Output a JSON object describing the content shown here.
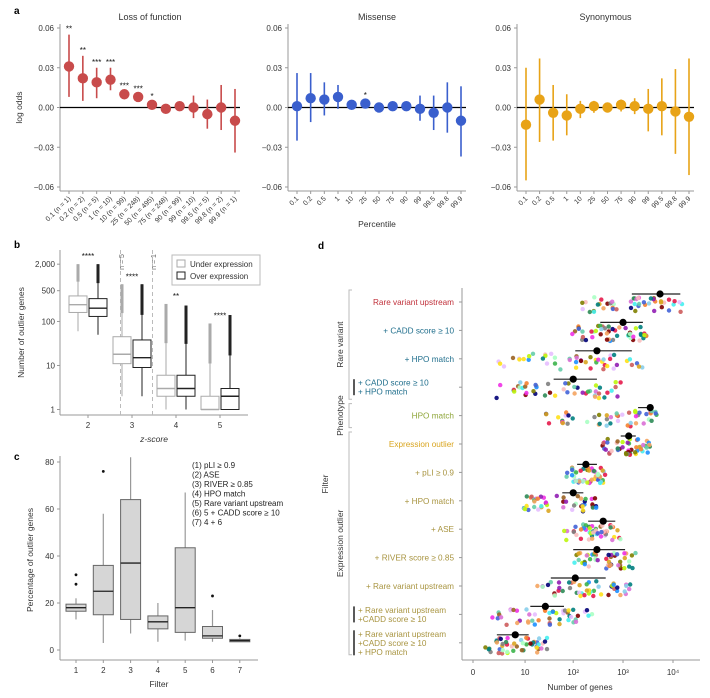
{
  "panel_letters": {
    "a": "a",
    "b": "b",
    "c": "c",
    "d": "d"
  },
  "chart_data": [
    {
      "id": "a-lof",
      "type": "scatter",
      "title": "Loss of function",
      "ylabel": "log odds",
      "xlabel": "",
      "ylim": [
        -0.06,
        0.06
      ],
      "yticks": [
        "0.06",
        "0.03",
        "0.00",
        "−0.03",
        "−0.06"
      ],
      "ytick_values": [
        0.06,
        0.03,
        0,
        -0.03,
        -0.06
      ],
      "color": "#C84B4B",
      "categories": [
        "0.1 (n = 1)",
        "0.2 (n = 2)",
        "0.5 (n = 5)",
        "1 (n = 10)",
        "10 (n = 99)",
        "25 (n = 248)",
        "50 (n = 495)",
        "75 (n = 248)",
        "90 (n = 99)",
        "99 (n = 10)",
        "99.5 (n = 5)",
        "99.8 (n = 2)",
        "99.9 (n = 1)"
      ],
      "values": [
        0.031,
        0.022,
        0.019,
        0.021,
        0.01,
        0.008,
        0.002,
        -0.001,
        0.001,
        0.0,
        -0.005,
        0.0,
        -0.01
      ],
      "lower": [
        0.008,
        0.005,
        0.007,
        0.013,
        0.007,
        0.006,
        0.0,
        -0.002,
        0.0,
        -0.008,
        -0.016,
        -0.017,
        -0.034
      ],
      "upper": [
        0.055,
        0.039,
        0.03,
        0.03,
        0.012,
        0.01,
        0.004,
        0.0,
        0.002,
        0.009,
        0.006,
        0.017,
        0.014
      ],
      "significance": [
        "**",
        "**",
        "***",
        "***",
        "***",
        "***",
        "*",
        "",
        "",
        "",
        "",
        "",
        ""
      ]
    },
    {
      "id": "a-missense",
      "type": "scatter",
      "title": "Missense",
      "xlabel": "Percentile",
      "ylim": [
        -0.06,
        0.06
      ],
      "yticks": [
        "0.06",
        "0.03",
        "0.00",
        "−0.03",
        "−0.06"
      ],
      "ytick_values": [
        0.06,
        0.03,
        0,
        -0.03,
        -0.06
      ],
      "color": "#3A5FCD",
      "categories": [
        "0.1",
        "0.2",
        "0.5",
        "1",
        "10",
        "25",
        "50",
        "75",
        "90",
        "99",
        "99.5",
        "99.8",
        "99.9"
      ],
      "values": [
        0.001,
        0.007,
        0.006,
        0.008,
        0.002,
        0.003,
        0.0,
        0.001,
        0.001,
        -0.001,
        -0.004,
        0.0,
        -0.01
      ],
      "lower": [
        -0.025,
        -0.011,
        -0.006,
        -0.001,
        -0.001,
        0.001,
        -0.001,
        0.0,
        -0.001,
        -0.01,
        -0.017,
        -0.019,
        -0.037
      ],
      "upper": [
        0.026,
        0.026,
        0.019,
        0.017,
        0.005,
        0.005,
        0.001,
        0.003,
        0.004,
        0.009,
        0.009,
        0.019,
        0.016
      ],
      "significance": [
        "",
        "",
        "",
        "",
        "",
        "*",
        "",
        "",
        "",
        "",
        "",
        "",
        ""
      ]
    },
    {
      "id": "a-synonymous",
      "type": "scatter",
      "title": "Synonymous",
      "xlabel": "",
      "ylim": [
        -0.06,
        0.06
      ],
      "yticks": [
        "0.06",
        "0.03",
        "0.00",
        "−0.03",
        "−0.06"
      ],
      "ytick_values": [
        0.06,
        0.03,
        0,
        -0.03,
        -0.06
      ],
      "color": "#E8A317",
      "categories": [
        "0.1",
        "0.2",
        "0.5",
        "1",
        "10",
        "25",
        "50",
        "75",
        "90",
        "99",
        "99.5",
        "99.8",
        "99.9"
      ],
      "values": [
        -0.013,
        0.006,
        -0.004,
        -0.006,
        -0.001,
        0.001,
        0.0,
        0.002,
        0.001,
        -0.001,
        0.001,
        -0.003,
        -0.007
      ],
      "lower": [
        -0.055,
        -0.026,
        -0.025,
        -0.021,
        -0.008,
        -0.004,
        -0.003,
        -0.003,
        -0.005,
        -0.018,
        -0.021,
        -0.035,
        -0.051
      ],
      "upper": [
        0.03,
        0.037,
        0.017,
        0.01,
        0.005,
        0.005,
        0.003,
        0.006,
        0.007,
        0.014,
        0.022,
        0.029,
        0.037
      ],
      "significance": [
        "",
        "",
        "",
        "",
        "",
        "",
        "",
        "",
        "",
        "",
        "",
        "",
        ""
      ]
    },
    {
      "id": "b",
      "type": "box",
      "xlabel": "z-score",
      "ylabel": "Number of outlier genes",
      "yscale": "log",
      "yticks": [
        "2,000",
        "500",
        "100",
        "10",
        "1"
      ],
      "ytick_values": [
        2000,
        500,
        100,
        10,
        1
      ],
      "categories": [
        "2",
        "3",
        "4",
        "5"
      ],
      "legend": [
        "Under expression",
        "Over expression"
      ],
      "legend_position": "top-right",
      "annotations": [
        "n = 5",
        "n = 1"
      ],
      "significance": [
        "****",
        "****",
        "**",
        "****"
      ],
      "series": [
        {
          "name": "Under expression",
          "color": "#aaaaaa",
          "boxes": [
            {
              "min": 60,
              "q1": 160,
              "median": 240,
              "q3": 380,
              "max": 2000
            },
            {
              "min": 2,
              "q1": 11,
              "median": 18,
              "q3": 45,
              "max": 700
            },
            {
              "min": 1,
              "q1": 2,
              "median": 3,
              "q3": 6,
              "max": 250
            },
            {
              "min": 1,
              "q1": 1,
              "median": 1,
              "q3": 2,
              "max": 90
            }
          ]
        },
        {
          "name": "Over expression",
          "color": "#222222",
          "boxes": [
            {
              "min": 50,
              "q1": 130,
              "median": 200,
              "q3": 330,
              "max": 2000
            },
            {
              "min": 2,
              "q1": 9,
              "median": 15,
              "q3": 38,
              "max": 700
            },
            {
              "min": 1,
              "q1": 2,
              "median": 3,
              "q3": 6,
              "max": 230
            },
            {
              "min": 1,
              "q1": 1,
              "median": 2,
              "q3": 3,
              "max": 140
            }
          ]
        }
      ]
    },
    {
      "id": "c",
      "type": "box",
      "xlabel": "Filter",
      "ylabel": "Percentage of outlier genes",
      "ylim": [
        0,
        82
      ],
      "yticks": [
        "80",
        "60",
        "40",
        "20",
        "0"
      ],
      "ytick_values": [
        80,
        60,
        40,
        20,
        0
      ],
      "categories": [
        "1",
        "2",
        "3",
        "4",
        "5",
        "6",
        "7"
      ],
      "legend": [
        "(1) pLI ≥ 0.9",
        "(2) ASE",
        "(3) RIVER ≥ 0.85",
        "(4) HPO match",
        "(5) Rare variant upstream",
        "(6) 5 + CADD score ≥ 10",
        "(7) 4 + 6"
      ],
      "legend_position": "top-right",
      "boxes": [
        {
          "min": 13,
          "q1": 16.5,
          "median": 18,
          "q3": 19.5,
          "max": 22,
          "outliers": [
            28,
            32
          ]
        },
        {
          "min": 3,
          "q1": 15,
          "median": 25,
          "q3": 36,
          "max": 58,
          "outliers": [
            76
          ]
        },
        {
          "min": 7,
          "q1": 13,
          "median": 37,
          "q3": 64,
          "max": 82,
          "outliers": []
        },
        {
          "min": 3.5,
          "q1": 9,
          "median": 12,
          "q3": 14.5,
          "max": 20,
          "outliers": []
        },
        {
          "min": 4,
          "q1": 7.5,
          "median": 18,
          "q3": 43.5,
          "max": 67,
          "outliers": []
        },
        {
          "min": 3.5,
          "q1": 5,
          "median": 6,
          "q3": 10,
          "max": 17,
          "outliers": [
            23
          ]
        },
        {
          "min": 3.5,
          "q1": 3.5,
          "median": 4,
          "q3": 4.5,
          "max": 5,
          "outliers": [
            6
          ]
        }
      ]
    },
    {
      "id": "d",
      "type": "scatter",
      "xlabel": "Number of genes",
      "ylabel": "Filter",
      "xscale": "log1p",
      "xticks": [
        "0",
        "10",
        "10²",
        "10³",
        "10⁴"
      ],
      "xtick_values": [
        0,
        10,
        100,
        1000,
        10000
      ],
      "groups": [
        {
          "label": "Rare variant",
          "rows": [
            0,
            1,
            2,
            3
          ]
        },
        {
          "label": "Phenotype",
          "rows": [
            4
          ]
        },
        {
          "label": "Expression outlier",
          "rows": [
            5,
            6,
            7,
            8,
            9,
            10,
            11,
            12
          ]
        }
      ],
      "rows": [
        {
          "label": "Rare variant upstream",
          "color": "#C0303A",
          "mean": 5500,
          "lo": 1500,
          "hi": 14000,
          "range": [
            60,
            16000
          ]
        },
        {
          "label": "+ CADD score ≥ 10",
          "color": "#1F6E8C",
          "mean": 1000,
          "lo": 350,
          "hi": 2500,
          "range": [
            40,
            3000
          ]
        },
        {
          "label": "+ HPO match",
          "color": "#1F6E8C",
          "mean": 300,
          "lo": 110,
          "hi": 1500,
          "range": [
            0,
            2500
          ]
        },
        {
          "label": "+ CADD score ≥ 10\n+ HPO match",
          "color": "#1F6E8C",
          "mean": 100,
          "lo": 40,
          "hi": 300,
          "range": [
            0,
            900
          ]
        },
        {
          "label": "HPO match",
          "color": "#8FA63A",
          "mean": 3500,
          "lo": 2000,
          "hi": 4000,
          "range": [
            10,
            5000
          ]
        },
        {
          "label": "Expression outlier",
          "color": "#D9A520",
          "mean": 1300,
          "lo": 900,
          "hi": 1800,
          "range": [
            250,
            3500
          ]
        },
        {
          "label": "+ pLI ≥ 0.9",
          "color": "#A89440",
          "mean": 180,
          "lo": 120,
          "hi": 300,
          "range": [
            50,
            450
          ]
        },
        {
          "label": "+ HPO match",
          "color": "#A89440",
          "mean": 100,
          "lo": 60,
          "hi": 160,
          "range": [
            4,
            300
          ]
        },
        {
          "label": "+ ASE",
          "color": "#A89440",
          "mean": 400,
          "lo": 200,
          "hi": 700,
          "range": [
            40,
            900
          ]
        },
        {
          "label": "+ RIVER score ≥ 0.85",
          "color": "#A89440",
          "mean": 300,
          "lo": 100,
          "hi": 1100,
          "range": [
            60,
            1800
          ]
        },
        {
          "label": "+ Rare variant upstream",
          "color": "#A89440",
          "mean": 110,
          "lo": 35,
          "hi": 450,
          "range": [
            8,
            1400
          ]
        },
        {
          "label": "+ Rare variant upstream\n+CADD score ≥ 10",
          "color": "#A89440",
          "mean": 27,
          "lo": 13,
          "hi": 65,
          "range": [
            0,
            250
          ]
        },
        {
          "label": "+ Rare variant upstream\n+CADD score ≥ 10\n+ HPO match",
          "color": "#A89440",
          "mean": 6,
          "lo": 2,
          "hi": 12,
          "range": [
            0,
            30
          ]
        }
      ]
    }
  ]
}
